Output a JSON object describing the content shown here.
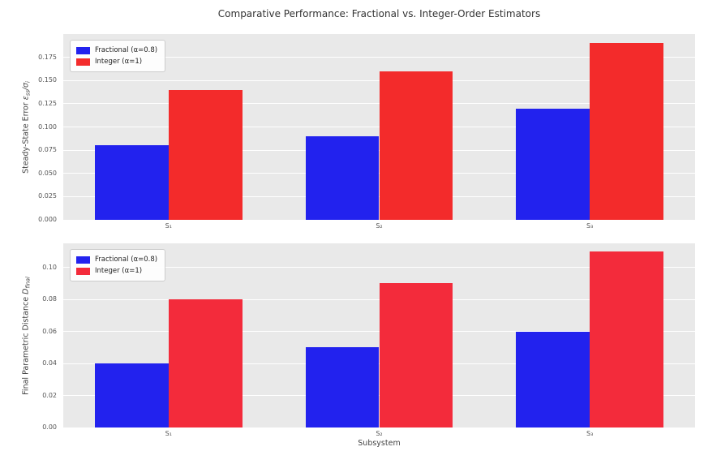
{
  "title": "Comparative Performance: Fractional vs. Integer-Order Estimators",
  "style": {
    "figure_bg": "#ffffff",
    "plot_bg": "#e9e9e9",
    "grid_color": "#ffffff",
    "tick_color": "#555555",
    "label_color": "#444444",
    "title_color": "#333333",
    "legend_border": "#cccccc",
    "fractional_color": "#2222ee",
    "integer_color": "#f32b2b"
  },
  "chart_data": [
    {
      "type": "bar",
      "title": "",
      "categories": [
        "S₁",
        "S₂",
        "S₃"
      ],
      "series": [
        {
          "name": "Fractional (α=0.8)",
          "color": "#2222ee",
          "values": [
            0.08,
            0.09,
            0.12
          ]
        },
        {
          "name": "Integer (α=1)",
          "color": "#f32b2b",
          "values": [
            0.14,
            0.16,
            0.19
          ]
        }
      ],
      "ylabel_segments": [
        {
          "t": "Steady-State Error "
        },
        {
          "t": "ε",
          "it": true
        },
        {
          "t": "ss",
          "sub": true,
          "it": true
        },
        {
          "t": "/",
          "it": true
        },
        {
          "t": "σ",
          "it": true
        },
        {
          "t": "i",
          "sub": true,
          "it": true
        }
      ],
      "yticks": [
        0.0,
        0.025,
        0.05,
        0.075,
        0.1,
        0.125,
        0.15,
        0.175
      ],
      "ytick_labels": [
        "0.000",
        "0.025",
        "0.050",
        "0.075",
        "0.100",
        "0.125",
        "0.150",
        "0.175"
      ],
      "ylim": [
        0,
        0.2
      ],
      "xlabel": "",
      "bar_width": 0.35,
      "legend_position": "upper left",
      "grid": true
    },
    {
      "type": "bar",
      "title": "",
      "categories": [
        "S₁",
        "S₂",
        "S₃"
      ],
      "series": [
        {
          "name": "Fractional (α=0.8)",
          "color": "#2222ee",
          "values": [
            0.04,
            0.05,
            0.06
          ]
        },
        {
          "name": "Integer (α=1)",
          "color": "#f32b3b",
          "values": [
            0.08,
            0.09,
            0.11
          ]
        }
      ],
      "ylabel_segments": [
        {
          "t": "Final Parametric Distance "
        },
        {
          "t": "D",
          "it": true
        },
        {
          "t": "final",
          "sub": true,
          "it": true
        }
      ],
      "yticks": [
        0.0,
        0.02,
        0.04,
        0.06,
        0.08,
        0.1
      ],
      "ytick_labels": [
        "0.00",
        "0.02",
        "0.04",
        "0.06",
        "0.08",
        "0.10"
      ],
      "ylim": [
        0,
        0.115
      ],
      "xlabel": "Subsystem",
      "bar_width": 0.35,
      "legend_position": "upper left",
      "grid": true
    }
  ]
}
